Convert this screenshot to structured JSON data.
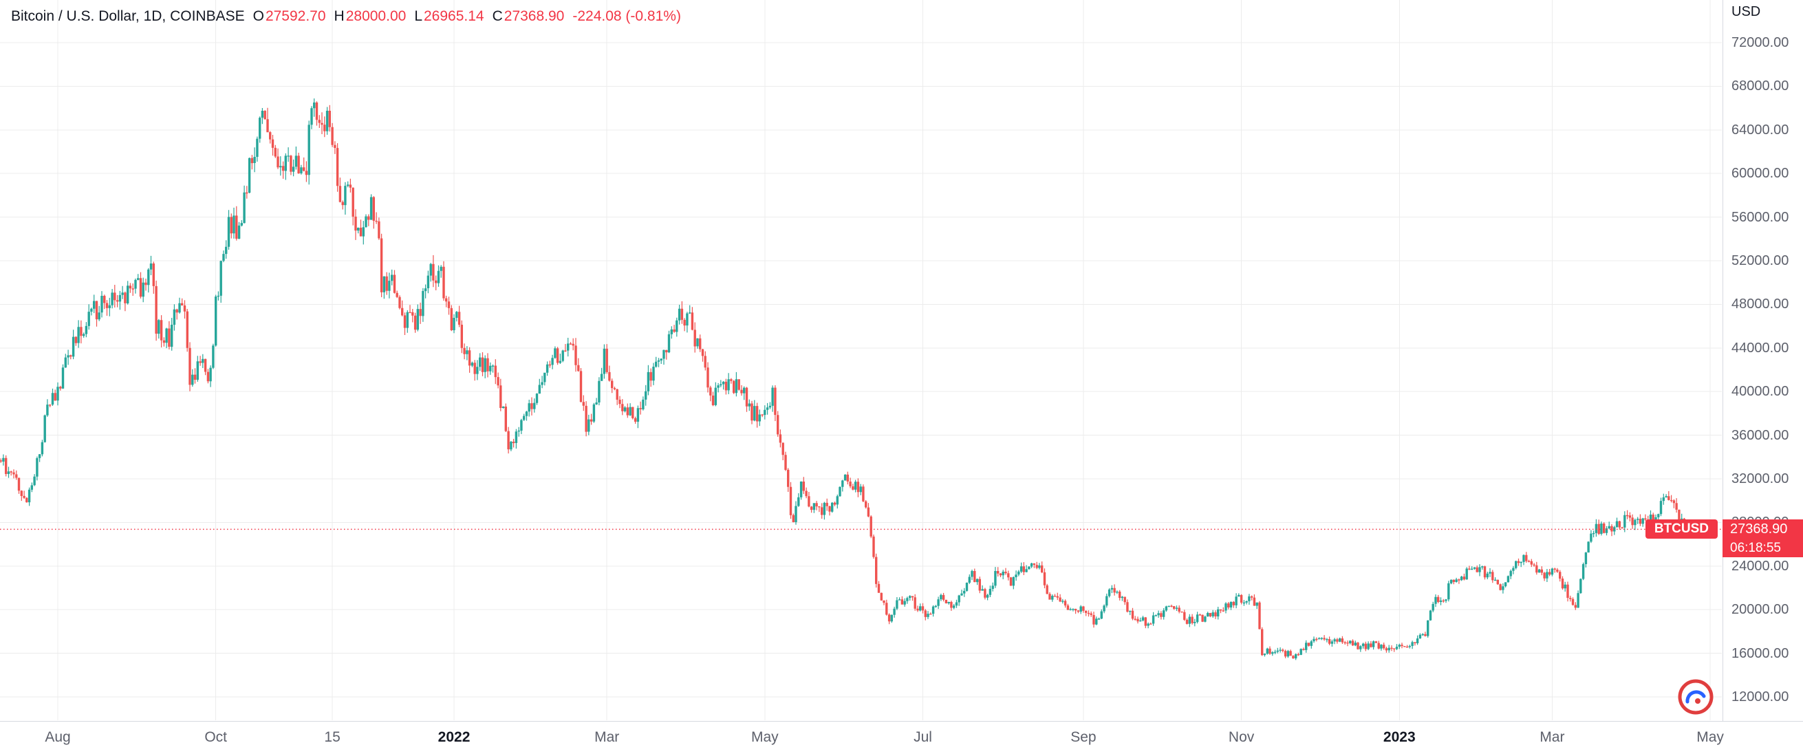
{
  "header": {
    "title": "Bitcoin / U.S. Dollar, 1D, COINBASE",
    "o_label": "O",
    "o_value": "27592.70",
    "h_label": "H",
    "h_value": "28000.00",
    "l_label": "L",
    "l_value": "26965.14",
    "c_label": "C",
    "c_value": "27368.90",
    "change": "-224.08 (-0.81%)"
  },
  "price_axis": {
    "currency": "USD",
    "ticks": [
      "72000.00",
      "68000.00",
      "64000.00",
      "60000.00",
      "56000.00",
      "52000.00",
      "48000.00",
      "44000.00",
      "40000.00",
      "36000.00",
      "32000.00",
      "28000.00",
      "24000.00",
      "20000.00",
      "16000.00",
      "12000.00"
    ],
    "tag_symbol": "BTCUSD",
    "tag_price": "27368.90",
    "countdown": "06:18:55"
  },
  "time_axis": {
    "labels": [
      {
        "text": "Aug",
        "date": "2021-08-01",
        "year": false
      },
      {
        "text": "Oct",
        "date": "2021-10-01",
        "year": false
      },
      {
        "text": "15",
        "date": "2021-11-15",
        "year": false
      },
      {
        "text": "2022",
        "date": "2022-01-01",
        "year": true
      },
      {
        "text": "Mar",
        "date": "2022-03-01",
        "year": false
      },
      {
        "text": "May",
        "date": "2022-05-01",
        "year": false
      },
      {
        "text": "Jul",
        "date": "2022-07-01",
        "year": false
      },
      {
        "text": "Sep",
        "date": "2022-09-01",
        "year": false
      },
      {
        "text": "Nov",
        "date": "2022-11-01",
        "year": false
      },
      {
        "text": "2023",
        "date": "2023-01-01",
        "year": true
      },
      {
        "text": "Mar",
        "date": "2023-03-01",
        "year": false
      },
      {
        "text": "May",
        "date": "2023-05-01",
        "year": false
      }
    ]
  },
  "colors": {
    "up": "#26a69a",
    "down": "#ef5350",
    "accent_red": "#f23645",
    "grid": "#ececec",
    "axis_border": "#d6d9e0",
    "text": "#131722",
    "muted_text": "#5d606b",
    "badge_red": "#e03e3e",
    "badge_blue": "#2962ff"
  },
  "chart_data": {
    "type": "candlestick",
    "title": "Bitcoin / U.S. Dollar",
    "symbol": "BTCUSD",
    "interval": "1D",
    "exchange": "COINBASE",
    "currency": "USD",
    "visible_date_range": [
      "2021-07-09",
      "2023-05-01"
    ],
    "visible_price_range": [
      10000,
      73500
    ],
    "y_ticks": [
      12000,
      16000,
      20000,
      24000,
      28000,
      32000,
      36000,
      40000,
      44000,
      48000,
      52000,
      56000,
      60000,
      64000,
      68000,
      72000
    ],
    "price_line": 27368.9,
    "last_bar": {
      "open": 27592.7,
      "high": 28000.0,
      "low": 26965.14,
      "close": 27368.9,
      "change": -224.08,
      "change_pct": -0.81
    },
    "daily_close_anchors": [
      [
        "2021-07-09",
        33800
      ],
      [
        "2021-07-13",
        32800
      ],
      [
        "2021-07-20",
        29800
      ],
      [
        "2021-07-25",
        34300
      ],
      [
        "2021-07-28",
        39500
      ],
      [
        "2021-08-01",
        39900
      ],
      [
        "2021-08-07",
        44600
      ],
      [
        "2021-08-14",
        47100
      ],
      [
        "2021-08-21",
        48900
      ],
      [
        "2021-08-28",
        48900
      ],
      [
        "2021-09-04",
        49950
      ],
      [
        "2021-09-06",
        52700
      ],
      [
        "2021-09-08",
        46050
      ],
      [
        "2021-09-13",
        44950
      ],
      [
        "2021-09-16",
        47750
      ],
      [
        "2021-09-19",
        47260
      ],
      [
        "2021-09-21",
        40700
      ],
      [
        "2021-09-25",
        42700
      ],
      [
        "2021-09-29",
        41500
      ],
      [
        "2021-10-01",
        48200
      ],
      [
        "2021-10-06",
        55300
      ],
      [
        "2021-10-10",
        54700
      ],
      [
        "2021-10-15",
        61700
      ],
      [
        "2021-10-20",
        66000
      ],
      [
        "2021-10-24",
        60900
      ],
      [
        "2021-10-28",
        60600
      ],
      [
        "2021-11-01",
        61300
      ],
      [
        "2021-11-05",
        61000
      ],
      [
        "2021-11-08",
        67550
      ],
      [
        "2021-11-10",
        64900
      ],
      [
        "2021-11-14",
        65500
      ],
      [
        "2021-11-18",
        56900
      ],
      [
        "2021-11-21",
        58700
      ],
      [
        "2021-11-26",
        53600
      ],
      [
        "2021-11-30",
        57000
      ],
      [
        "2021-12-03",
        53600
      ],
      [
        "2021-12-04",
        49200
      ],
      [
        "2021-12-08",
        50500
      ],
      [
        "2021-12-13",
        46700
      ],
      [
        "2021-12-17",
        46200
      ],
      [
        "2021-12-23",
        50800
      ],
      [
        "2021-12-27",
        50700
      ],
      [
        "2021-12-31",
        46200
      ],
      [
        "2022-01-02",
        47300
      ],
      [
        "2022-01-05",
        43400
      ],
      [
        "2022-01-09",
        41900
      ],
      [
        "2022-01-13",
        42600
      ],
      [
        "2022-01-17",
        42200
      ],
      [
        "2022-01-22",
        35000
      ],
      [
        "2022-01-27",
        37200
      ],
      [
        "2022-01-31",
        38500
      ],
      [
        "2022-02-04",
        41600
      ],
      [
        "2022-02-10",
        43500
      ],
      [
        "2022-02-16",
        43900
      ],
      [
        "2022-02-21",
        37000
      ],
      [
        "2022-02-24",
        38300
      ],
      [
        "2022-02-28",
        43200
      ],
      [
        "2022-03-04",
        39400
      ],
      [
        "2022-03-08",
        38700
      ],
      [
        "2022-03-13",
        37800
      ],
      [
        "2022-03-18",
        41800
      ],
      [
        "2022-03-24",
        44000
      ],
      [
        "2022-03-29",
        47500
      ],
      [
        "2022-04-02",
        46300
      ],
      [
        "2022-04-06",
        43200
      ],
      [
        "2022-04-11",
        39500
      ],
      [
        "2022-04-16",
        40400
      ],
      [
        "2022-04-21",
        40500
      ],
      [
        "2022-04-26",
        38100
      ],
      [
        "2022-04-30",
        37700
      ],
      [
        "2022-05-04",
        39700
      ],
      [
        "2022-05-08",
        34000
      ],
      [
        "2022-05-11",
        29000
      ],
      [
        "2022-05-12",
        28100
      ],
      [
        "2022-05-15",
        31300
      ],
      [
        "2022-05-20",
        29200
      ],
      [
        "2022-05-26",
        29200
      ],
      [
        "2022-05-31",
        31800
      ],
      [
        "2022-06-06",
        31400
      ],
      [
        "2022-06-10",
        29100
      ],
      [
        "2022-06-13",
        22500
      ],
      [
        "2022-06-18",
        18970
      ],
      [
        "2022-06-21",
        20700
      ],
      [
        "2022-06-26",
        21000
      ],
      [
        "2022-06-30",
        19900
      ],
      [
        "2022-07-03",
        19300
      ],
      [
        "2022-07-08",
        21600
      ],
      [
        "2022-07-13",
        20100
      ],
      [
        "2022-07-20",
        23200
      ],
      [
        "2022-07-26",
        21000
      ],
      [
        "2022-07-30",
        23800
      ],
      [
        "2022-08-04",
        22600
      ],
      [
        "2022-08-08",
        23800
      ],
      [
        "2022-08-14",
        24300
      ],
      [
        "2022-08-19",
        21100
      ],
      [
        "2022-08-27",
        20000
      ],
      [
        "2022-08-31",
        20050
      ],
      [
        "2022-09-06",
        18800
      ],
      [
        "2022-09-12",
        22400
      ],
      [
        "2022-09-19",
        19550
      ],
      [
        "2022-09-25",
        18800
      ],
      [
        "2022-09-30",
        19400
      ],
      [
        "2022-10-04",
        20300
      ],
      [
        "2022-10-11",
        19050
      ],
      [
        "2022-10-18",
        19300
      ],
      [
        "2022-10-25",
        20100
      ],
      [
        "2022-10-29",
        20800
      ],
      [
        "2022-11-04",
        21150
      ],
      [
        "2022-11-07",
        20600
      ],
      [
        "2022-11-09",
        15880
      ],
      [
        "2022-11-13",
        16300
      ],
      [
        "2022-11-21",
        15780
      ],
      [
        "2022-11-25",
        16500
      ],
      [
        "2022-11-30",
        17150
      ],
      [
        "2022-12-04",
        17100
      ],
      [
        "2022-12-10",
        17130
      ],
      [
        "2022-12-16",
        16650
      ],
      [
        "2022-12-22",
        16820
      ],
      [
        "2022-12-28",
        16550
      ],
      [
        "2023-01-01",
        16600
      ],
      [
        "2023-01-07",
        16950
      ],
      [
        "2023-01-11",
        17950
      ],
      [
        "2023-01-14",
        20950
      ],
      [
        "2023-01-18",
        20700
      ],
      [
        "2023-01-21",
        22700
      ],
      [
        "2023-01-25",
        23050
      ],
      [
        "2023-01-29",
        23750
      ],
      [
        "2023-02-02",
        23500
      ],
      [
        "2023-02-06",
        22950
      ],
      [
        "2023-02-10",
        21800
      ],
      [
        "2023-02-16",
        24600
      ],
      [
        "2023-02-21",
        24450
      ],
      [
        "2023-02-25",
        23000
      ],
      [
        "2023-03-01",
        23650
      ],
      [
        "2023-03-05",
        22400
      ],
      [
        "2023-03-10",
        20200
      ],
      [
        "2023-03-13",
        24200
      ],
      [
        "2023-03-17",
        27450
      ],
      [
        "2023-03-22",
        27250
      ],
      [
        "2023-03-26",
        27950
      ],
      [
        "2023-03-30",
        28200
      ],
      [
        "2023-04-04",
        28170
      ],
      [
        "2023-04-09",
        28330
      ],
      [
        "2023-04-14",
        30500
      ],
      [
        "2023-04-18",
        29450
      ],
      [
        "2023-04-21",
        27270
      ],
      [
        "2023-04-23",
        27590
      ],
      [
        "2023-04-24",
        27368.9
      ]
    ]
  }
}
